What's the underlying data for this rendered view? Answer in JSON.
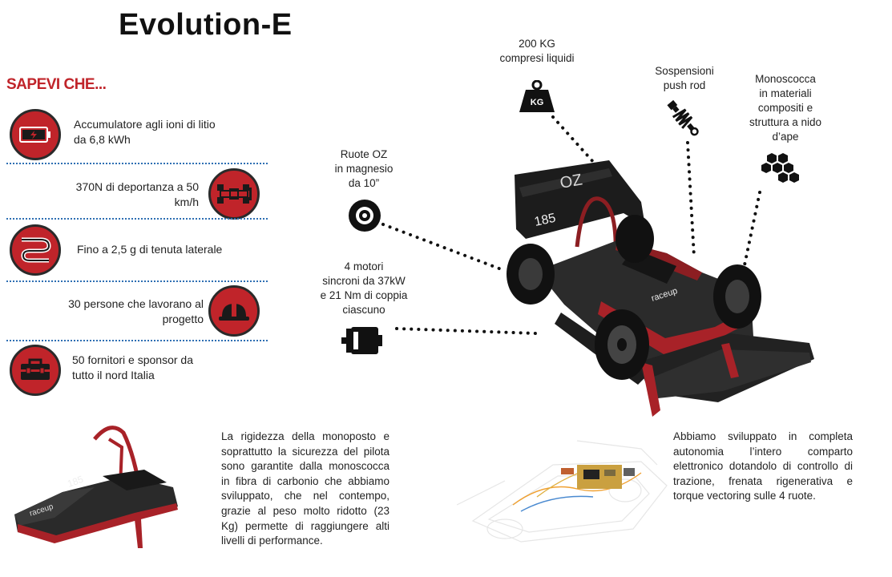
{
  "title": "Evolution-E",
  "sapevi": "SAPEVI CHE...",
  "facts": [
    {
      "text": "Accumulatore agli ioni di litio da 6,8 kWh",
      "icon": "battery-icon"
    },
    {
      "text": "370N di deportanza a 50 km/h",
      "icon": "race-car-icon"
    },
    {
      "text": "Fino a 2,5 g di tenuta laterale",
      "icon": "curved-road-icon"
    },
    {
      "text": "30 persone che lavorano al progetto",
      "icon": "hard-hat-icon"
    },
    {
      "text": "50 fornitori e sponsor da tutto il nord Italia",
      "icon": "toolbox-icon"
    }
  ],
  "features": {
    "weight": {
      "line1": "200 KG",
      "line2": "compresi liquidi",
      "icon_text": "KG",
      "icon": "weight-icon"
    },
    "suspension": {
      "line1": "Sospensioni",
      "line2": "push rod",
      "icon": "spring-icon"
    },
    "monocoque": {
      "line1": "Monoscocca",
      "line2": "in materiali",
      "line3": "compositi e",
      "line4": "struttura a nido",
      "line5": "d’ape",
      "icon": "honeycomb-icon"
    },
    "wheels": {
      "line1": "Ruote OZ",
      "line2": "in magnesio",
      "line3": "da 10”",
      "icon": "wheel-icon"
    },
    "motors": {
      "line1": "4 motori",
      "line2": "sincroni da 37kW",
      "line3": "e 21 Nm di coppia",
      "line4": "ciascuno",
      "icon": "motor-icon"
    }
  },
  "car": {
    "wing_text": "OZ",
    "number": "185",
    "brand": "raceup"
  },
  "paragraphs": {
    "monocoque_text": "La rigidezza della monoposto e soprattutto la sicurezza del pilota sono garantite dalla monoscocca in fibra di carbonio che abbiamo sviluppato, che nel contempo, grazie al peso molto ridotto (23 Kg) permette di raggiungere alti livelli di performance.",
    "electronics_text": "Abbiamo sviluppato in completa autonomia l’intero comparto elettronico dotandolo di controllo di trazione, frenata rigenerativa e torque vectoring sulle 4 ruote."
  },
  "colors": {
    "accent": "#c0242a",
    "dark": "#2a2a2a",
    "separator": "#2e6fb3"
  }
}
